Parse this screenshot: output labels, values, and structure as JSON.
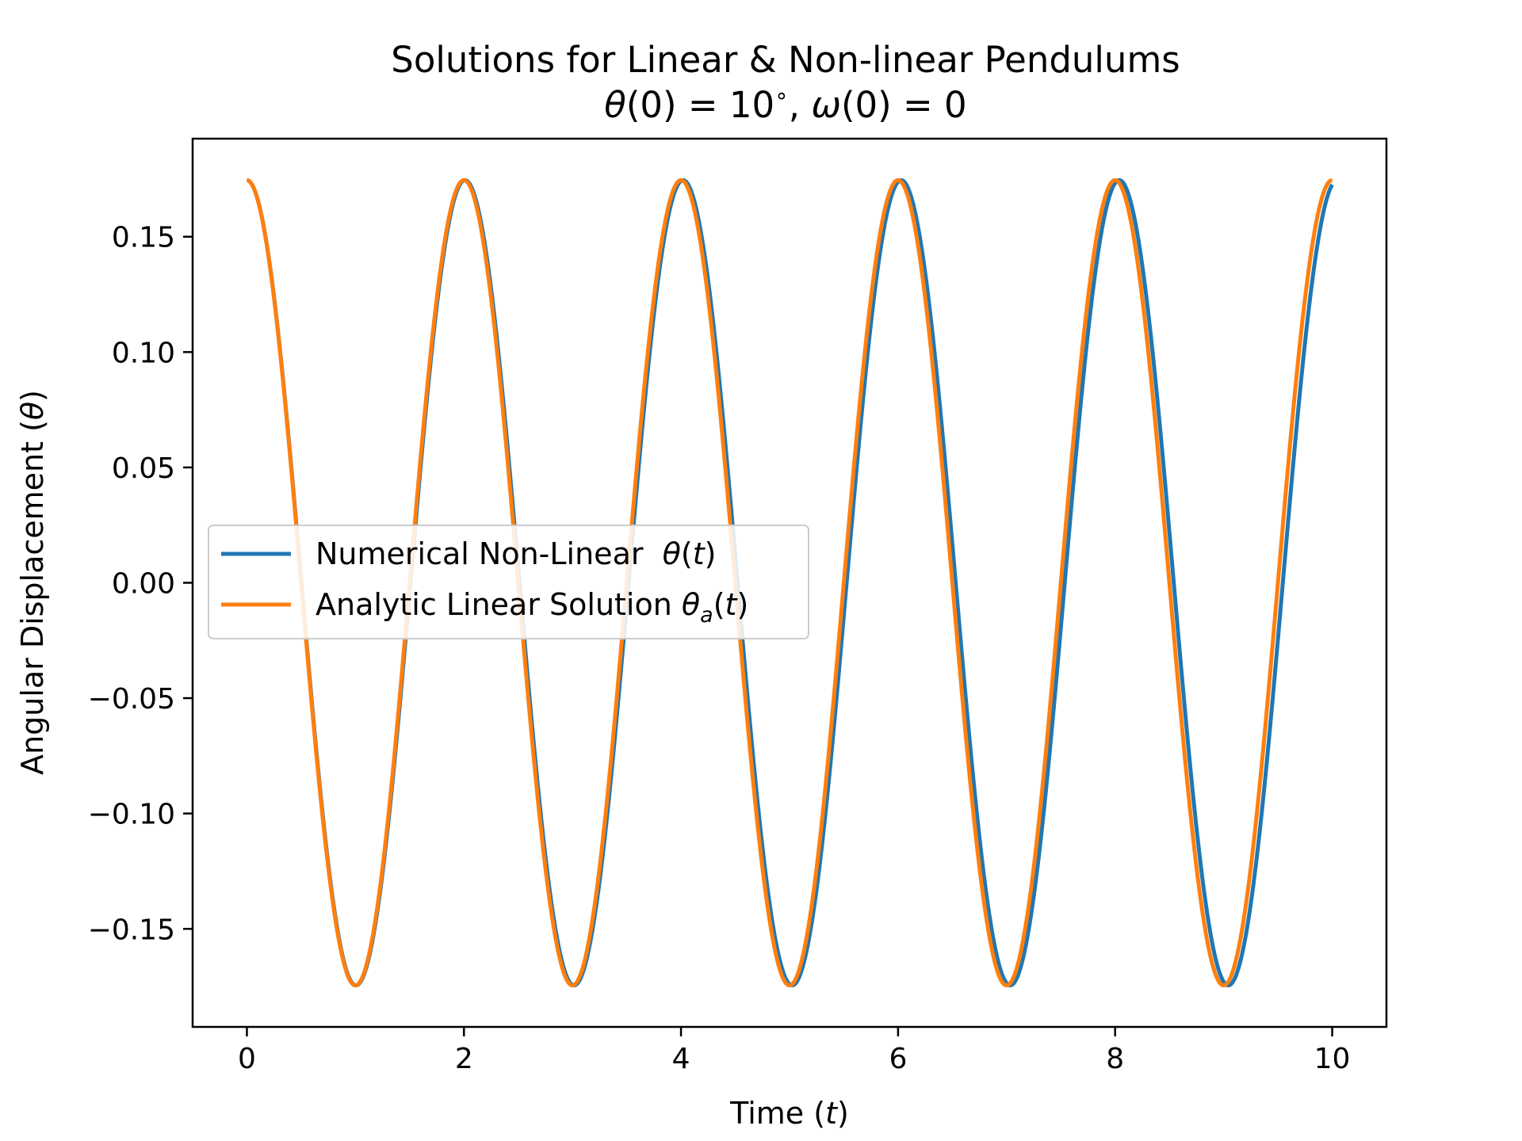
{
  "chart_data": {
    "type": "line",
    "title": "Solutions for Linear & Non-linear Pendulums",
    "subtitle": {
      "theta": "θ",
      "theta_arg": "(0) = 10",
      "deg": "∘",
      "sep": ", ",
      "omega": "ω",
      "omega_arg": "(0) = 0"
    },
    "xlabel": {
      "text": "Time (",
      "var": "t",
      "close": ")"
    },
    "ylabel": {
      "text": "Angular Displacement (",
      "var": "θ",
      "close": ")"
    },
    "xlim": [
      -0.5,
      10.5
    ],
    "ylim": [
      -0.1925,
      0.1925
    ],
    "x_ticks": [
      0,
      2,
      4,
      6,
      8,
      10
    ],
    "x_tick_labels": [
      "0",
      "2",
      "4",
      "6",
      "8",
      "10"
    ],
    "y_ticks": [
      0.15,
      0.1,
      0.05,
      0.0,
      -0.05,
      -0.1,
      -0.15
    ],
    "y_tick_labels": [
      "0.15",
      "0.10",
      "0.05",
      "0.00",
      "−0.05",
      "−0.10",
      "−0.15"
    ],
    "grid": false,
    "legend_position": "center-left",
    "series": [
      {
        "name": "Numerical Non-Linear  θ(t)",
        "legend": {
          "text": "Numerical Non-Linear  ",
          "var": "θ",
          "close_open": "(",
          "arg": "t",
          "close": ")"
        },
        "color": "#1f77b4",
        "model": "nonlinear",
        "amplitude": 0.1745,
        "period": 2.0095,
        "t_range": [
          0,
          10
        ]
      },
      {
        "name": "Analytic Linear Solution θa(t)",
        "legend": {
          "text": "Analytic Linear Solution ",
          "var": "θ",
          "sub": "a",
          "close_open": "(",
          "arg": "t",
          "close": ")"
        },
        "color": "#ff7f0e",
        "model": "linear",
        "amplitude": 0.1745,
        "period": 2.0,
        "t_range": [
          0,
          10
        ]
      }
    ]
  }
}
